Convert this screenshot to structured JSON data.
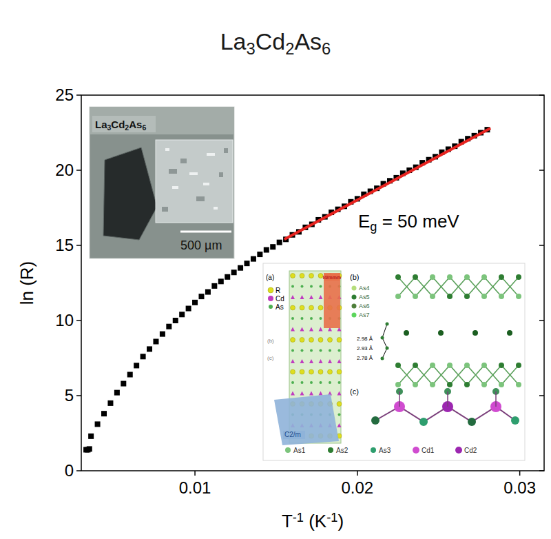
{
  "chart_data": {
    "type": "scatter",
    "title": [
      "La",
      "3",
      "Cd",
      "2",
      "As",
      "6"
    ],
    "xlabel": [
      "T",
      "-1",
      " (K",
      "-1",
      ")"
    ],
    "ylabel": "ln (R)",
    "xlim": [
      0.003,
      0.0315
    ],
    "ylim": [
      0,
      25
    ],
    "xticks": [
      0.01,
      0.02,
      0.03
    ],
    "yticks": [
      0,
      5,
      10,
      15,
      20,
      25
    ],
    "grid": false,
    "series": [
      {
        "type": "scatter",
        "marker": "square",
        "color": "#000000",
        "x": [
          0.0033,
          0.0034,
          0.0035,
          0.0036,
          0.004,
          0.0044,
          0.0048,
          0.0052,
          0.0056,
          0.006,
          0.0064,
          0.0068,
          0.0072,
          0.0076,
          0.008,
          0.0084,
          0.0088,
          0.0092,
          0.0096,
          0.01,
          0.0104,
          0.0108,
          0.0112,
          0.0116,
          0.012,
          0.0124,
          0.0128,
          0.0132,
          0.0136,
          0.014,
          0.0144,
          0.0148,
          0.0152,
          0.0156,
          0.016,
          0.0164,
          0.0168,
          0.0172,
          0.0176,
          0.018,
          0.0184,
          0.0188,
          0.0192,
          0.0196,
          0.02,
          0.0204,
          0.0208,
          0.0212,
          0.0216,
          0.022,
          0.0224,
          0.0228,
          0.0232,
          0.0236,
          0.024,
          0.0244,
          0.0248,
          0.0252,
          0.0256,
          0.026,
          0.0264,
          0.0268,
          0.0272,
          0.0276,
          0.028
        ],
        "values": [
          1.4,
          1.4,
          1.45,
          2.3,
          3.1,
          3.8,
          4.5,
          5.2,
          5.8,
          6.4,
          7.0,
          7.6,
          8.1,
          8.6,
          9.1,
          9.6,
          10.0,
          10.4,
          10.8,
          11.2,
          11.6,
          11.9,
          12.3,
          12.6,
          12.9,
          13.2,
          13.5,
          13.8,
          14.1,
          14.4,
          14.7,
          14.9,
          15.2,
          15.4,
          15.7,
          15.9,
          16.2,
          16.4,
          16.7,
          16.9,
          17.2,
          17.4,
          17.6,
          17.9,
          18.1,
          18.4,
          18.6,
          18.8,
          19.1,
          19.3,
          19.5,
          19.8,
          20.0,
          20.2,
          20.5,
          20.7,
          20.9,
          21.2,
          21.4,
          21.6,
          21.9,
          22.1,
          22.3,
          22.5,
          22.7
        ]
      },
      {
        "type": "line",
        "line_style": "solid",
        "color": "#e8231f",
        "x": [
          0.0155,
          0.0282
        ],
        "values": [
          15.4,
          22.8
        ]
      }
    ],
    "annotations": [
      [
        "E",
        "g",
        " = 50 meV"
      ],
      [
        "La",
        "3",
        "Cd",
        "2",
        "As",
        "6"
      ],
      "500 µm",
      "(a)",
      "R",
      "Cd",
      "As",
      "I4/mmm",
      "(b)",
      "(c)",
      "C2/m",
      "(b)",
      "As4",
      "As5",
      "As6",
      "As7",
      "2.98 Å",
      "2.93 Å",
      "2.78 Å",
      "(c)",
      "As1",
      "As2",
      "As3",
      "Cd1",
      "Cd2"
    ]
  }
}
